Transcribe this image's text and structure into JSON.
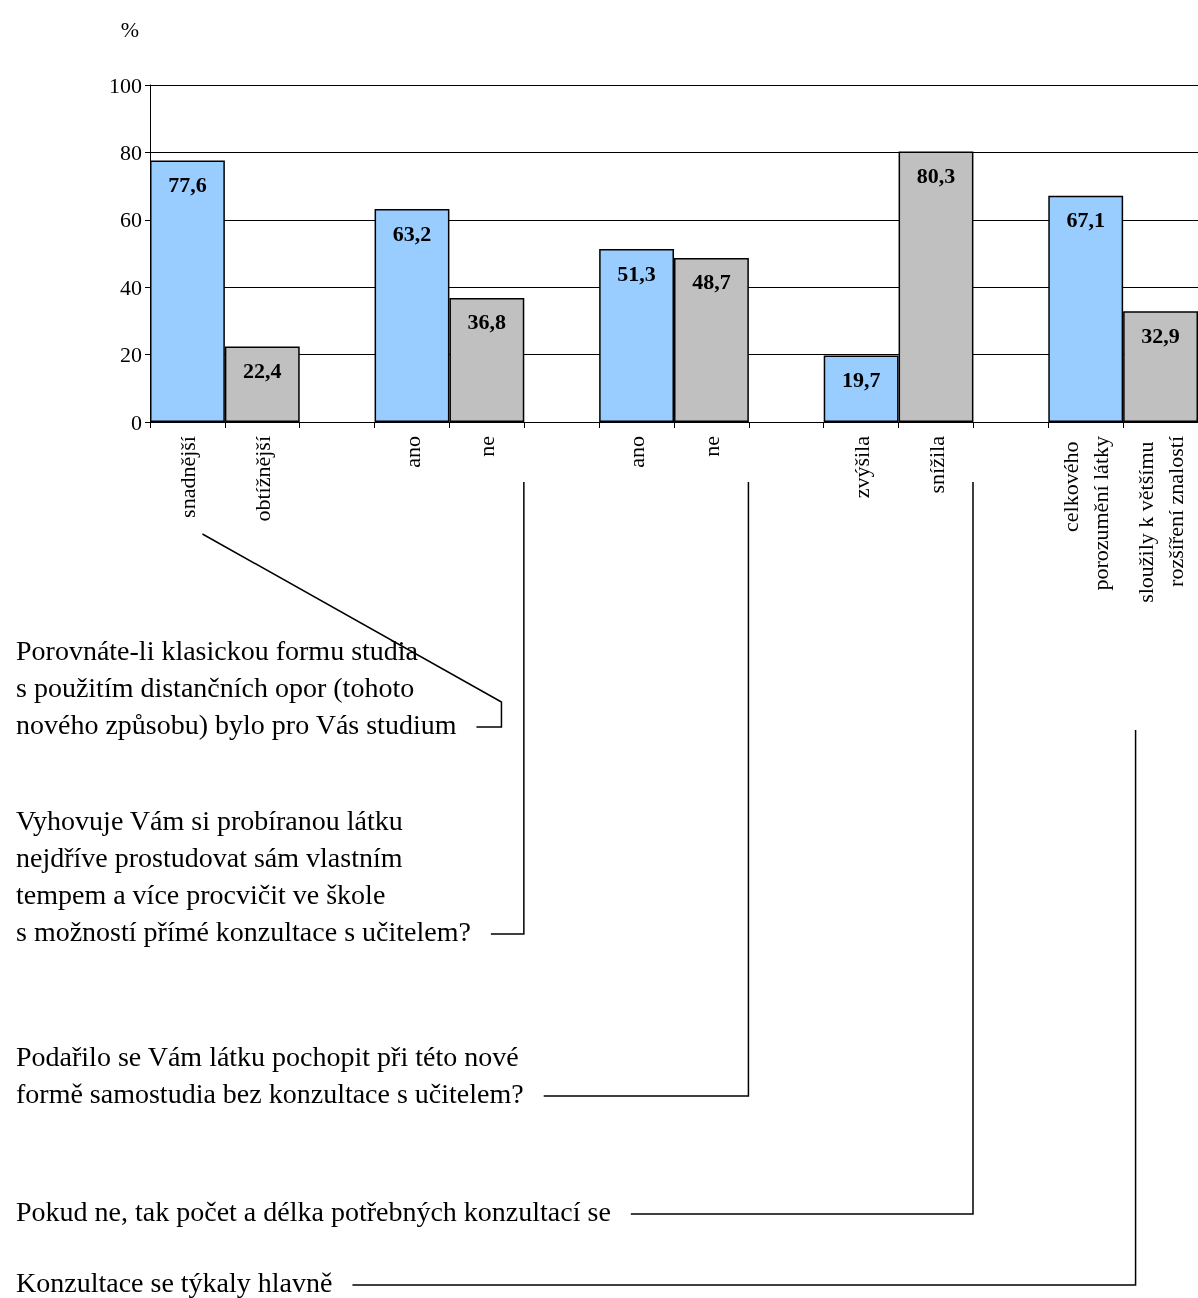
{
  "chart_data": {
    "type": "bar",
    "ylabel": "%",
    "categories": [
      "snadnější",
      "obtížnější",
      null,
      "ano",
      "ne",
      null,
      "ano",
      "ne",
      null,
      "zvýšila",
      "snížila",
      null,
      "celkového porozumění látky",
      "sloužily k většímu rozšíření znalostí"
    ],
    "values": [
      77.6,
      22.4,
      null,
      63.2,
      36.8,
      null,
      51.3,
      48.7,
      null,
      19.7,
      80.3,
      null,
      67.1,
      32.9
    ],
    "colors": [
      "#99ccff",
      "#c0c0c0",
      null,
      "#99ccff",
      "#c0c0c0",
      null,
      "#99ccff",
      "#c0c0c0",
      null,
      "#99ccff",
      "#c0c0c0",
      null,
      "#99ccff",
      "#c0c0c0"
    ],
    "value_labels": [
      "77,6",
      "22,4",
      null,
      "63,2",
      "36,8",
      null,
      "51,3",
      "48,7",
      null,
      "19,7",
      "80,3",
      null,
      "67,1",
      "32,9"
    ],
    "ylim": [
      0,
      100
    ],
    "yticks": [
      0,
      20,
      40,
      60,
      80,
      100
    ],
    "grid": "y",
    "annotations": [
      "Porovnáte-li klasickou formu studia\ns použitím distančních opor (tohoto\nnového způsobu) bylo pro Vás studium",
      "Vyhovuje Vám si probíranou látku\nnejdříve prostudovat sám vlastním\ntempem a více procvičit ve škole\ns možností přímé konzultace s učitelem?",
      "Podařilo se Vám látku pochopit při této nové\nformě samostudia bez konzultace s učitelem?",
      "Pokud ne, tak počet a délka potřebných konzultací se",
      "Konzultace se týkaly hlavně"
    ]
  }
}
